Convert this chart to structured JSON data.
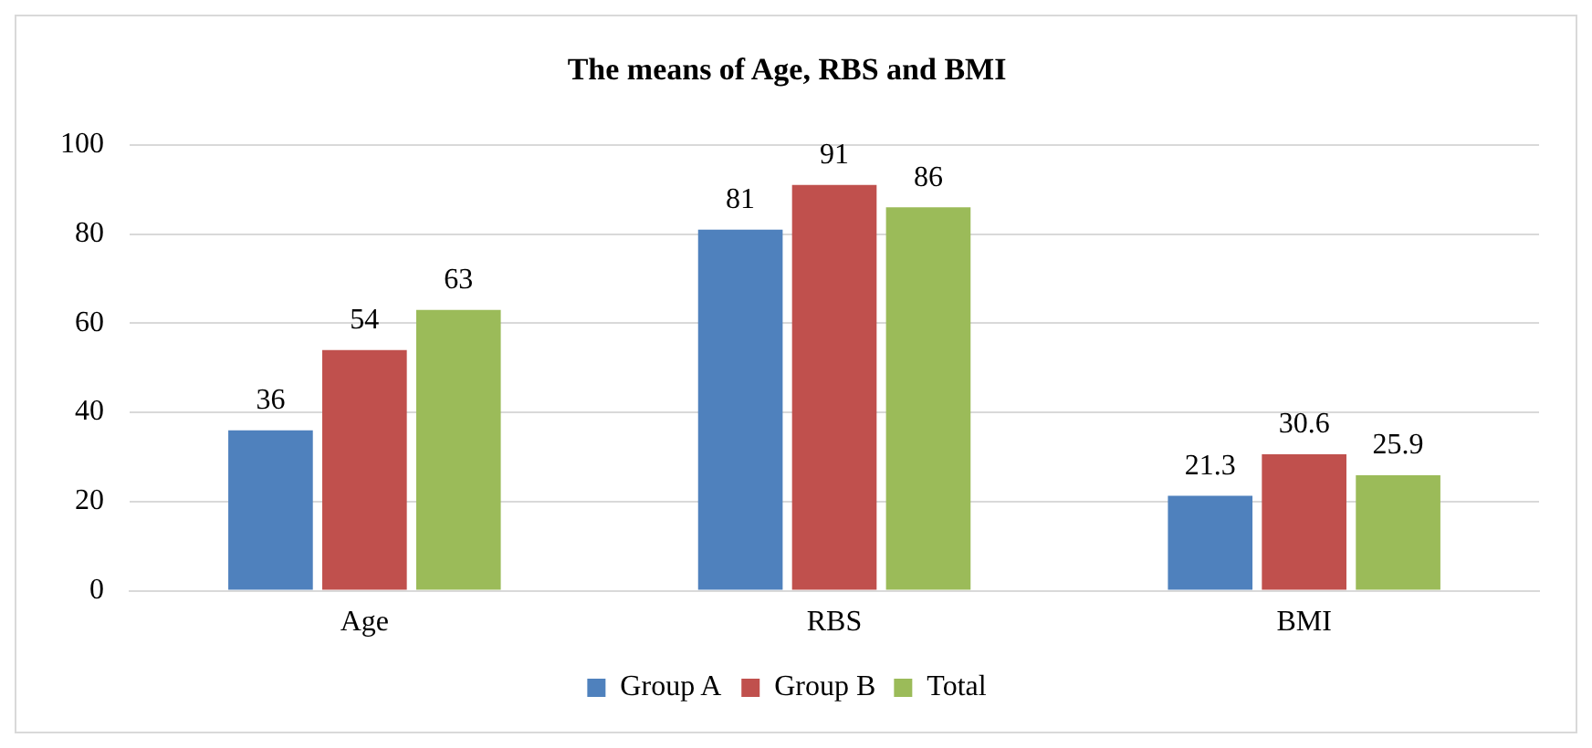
{
  "chart_data": {
    "type": "bar",
    "title": "The means of Age, RBS and BMI",
    "categories": [
      "Age",
      "RBS",
      "BMI"
    ],
    "series": [
      {
        "name": "Group A",
        "color": "#4f81bd",
        "values": [
          36,
          81,
          21.3
        ]
      },
      {
        "name": "Group B",
        "color": "#c0504d",
        "values": [
          54,
          91,
          30.6
        ]
      },
      {
        "name": "Total",
        "color": "#9bbb59",
        "values": [
          63,
          86,
          25.9
        ]
      }
    ],
    "ylim": [
      0,
      100
    ],
    "yticks": [
      0,
      20,
      40,
      60,
      80,
      100
    ],
    "grid": "y",
    "legend": "bottom",
    "data_labels": true
  }
}
